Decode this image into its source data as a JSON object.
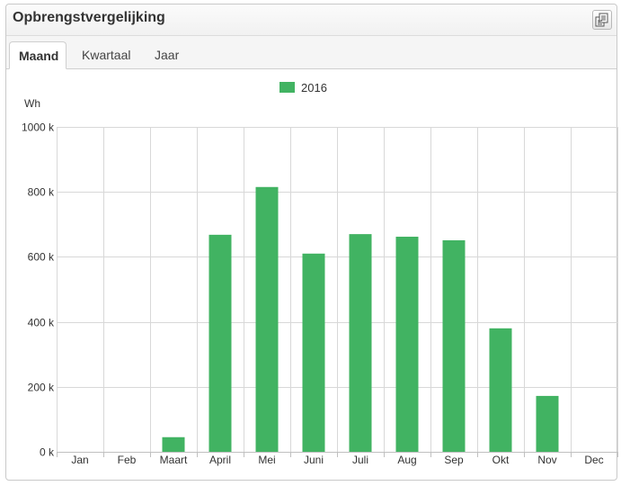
{
  "panel": {
    "title": "Opbrengstvergelijking",
    "export_icon": "document-export-icon"
  },
  "tabs": [
    {
      "label": "Maand",
      "active": true
    },
    {
      "label": "Kwartaal",
      "active": false
    },
    {
      "label": "Jaar",
      "active": false
    }
  ],
  "colors": {
    "bar": "#41b362",
    "grid": "#d8d8d8",
    "axis": "#c0c0c0",
    "accent_border": "#c9c9c9"
  },
  "chart_data": {
    "type": "bar",
    "ylabel": "Wh",
    "ylim": [
      0,
      1000
    ],
    "y_ticks": [
      0,
      200,
      400,
      600,
      800,
      1000
    ],
    "y_tick_labels": [
      "0 k",
      "200 k",
      "400 k",
      "600 k",
      "800 k",
      "1000 k"
    ],
    "categories": [
      "Jan",
      "Feb",
      "Maart",
      "April",
      "Mei",
      "Juni",
      "Juli",
      "Aug",
      "Sep",
      "Okt",
      "Nov",
      "Dec"
    ],
    "series": [
      {
        "name": "2016",
        "values": [
          0,
          0,
          45,
          668,
          815,
          610,
          670,
          662,
          651,
          380,
          172,
          0
        ]
      }
    ],
    "grid": true,
    "legend": "top-center"
  }
}
